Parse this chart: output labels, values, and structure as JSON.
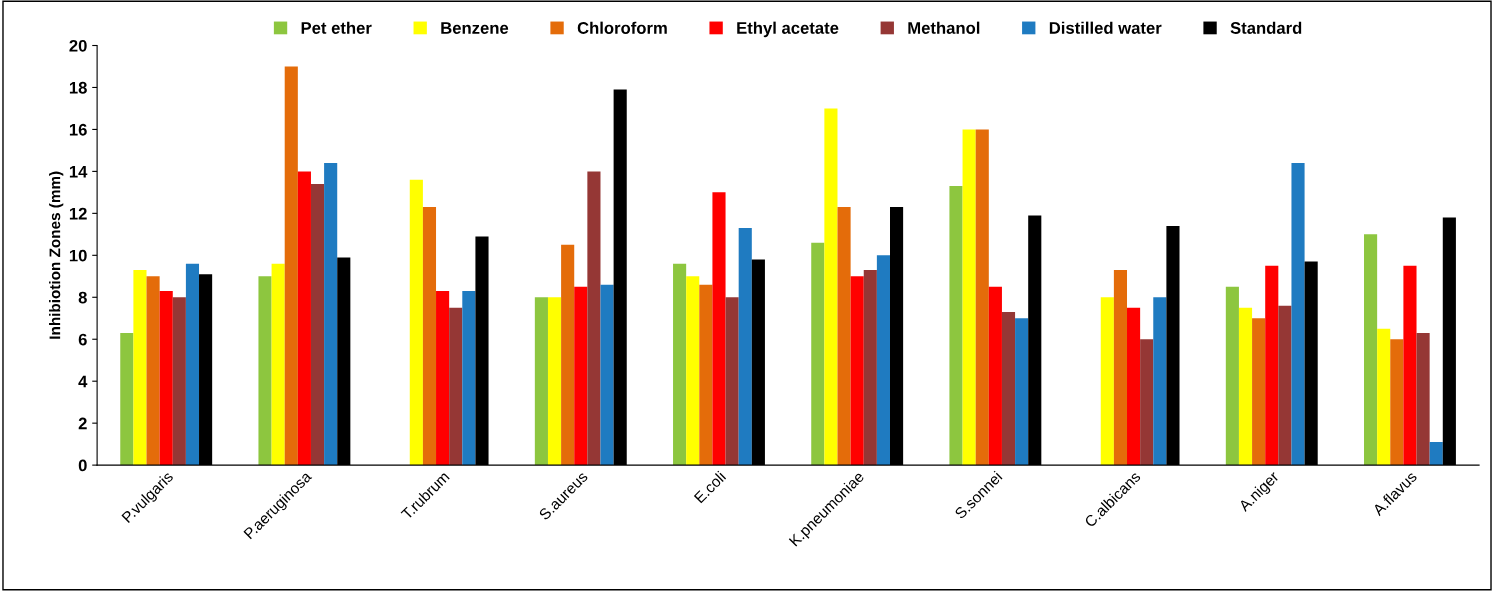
{
  "chart_data": {
    "type": "bar",
    "ylabel": "Inhibiotion Zones (mm)",
    "categories": [
      "P.vulgaris",
      "P.aeruginosa",
      "T.rubrum",
      "S.aureus",
      "E.coli",
      "K.pneumoniae",
      "S.sonnei",
      "C.albicans",
      "A.niger",
      "A.flavus"
    ],
    "series": [
      {
        "name": "Pet ether",
        "color": "#8dc63f",
        "values": [
          6.3,
          9.0,
          0,
          8.0,
          9.6,
          10.6,
          13.3,
          0,
          8.5,
          11.0
        ]
      },
      {
        "name": "Benzene",
        "color": "#ffff00",
        "values": [
          9.3,
          9.6,
          13.6,
          8.0,
          9.0,
          17.0,
          16.0,
          8.0,
          7.5,
          6.5
        ]
      },
      {
        "name": "Chloroform",
        "color": "#e46c0a",
        "values": [
          9.0,
          19.0,
          12.3,
          10.5,
          8.6,
          12.3,
          16.0,
          9.3,
          7.0,
          6.0
        ]
      },
      {
        "name": "Ethyl acetate",
        "color": "#ff0000",
        "values": [
          8.3,
          14.0,
          8.3,
          8.5,
          13.0,
          9.0,
          8.5,
          7.5,
          9.5,
          9.5
        ]
      },
      {
        "name": "Methanol",
        "color": "#953735",
        "values": [
          8.0,
          13.4,
          7.5,
          14.0,
          8.0,
          9.3,
          7.3,
          6.0,
          7.6,
          6.3
        ]
      },
      {
        "name": "Distilled water",
        "color": "#1f7bc1",
        "values": [
          9.6,
          14.4,
          8.3,
          8.6,
          11.3,
          10.0,
          7.0,
          8.0,
          14.4,
          1.1
        ]
      },
      {
        "name": "Standard",
        "color": "#000000",
        "values": [
          9.1,
          9.9,
          10.9,
          17.9,
          9.8,
          12.3,
          11.9,
          11.4,
          9.7,
          11.8
        ]
      }
    ],
    "ylim": [
      0,
      20
    ],
    "yticks": [
      0,
      2,
      4,
      6,
      8,
      10,
      12,
      14,
      16,
      18,
      20
    ],
    "grid": false,
    "legend": "top"
  }
}
